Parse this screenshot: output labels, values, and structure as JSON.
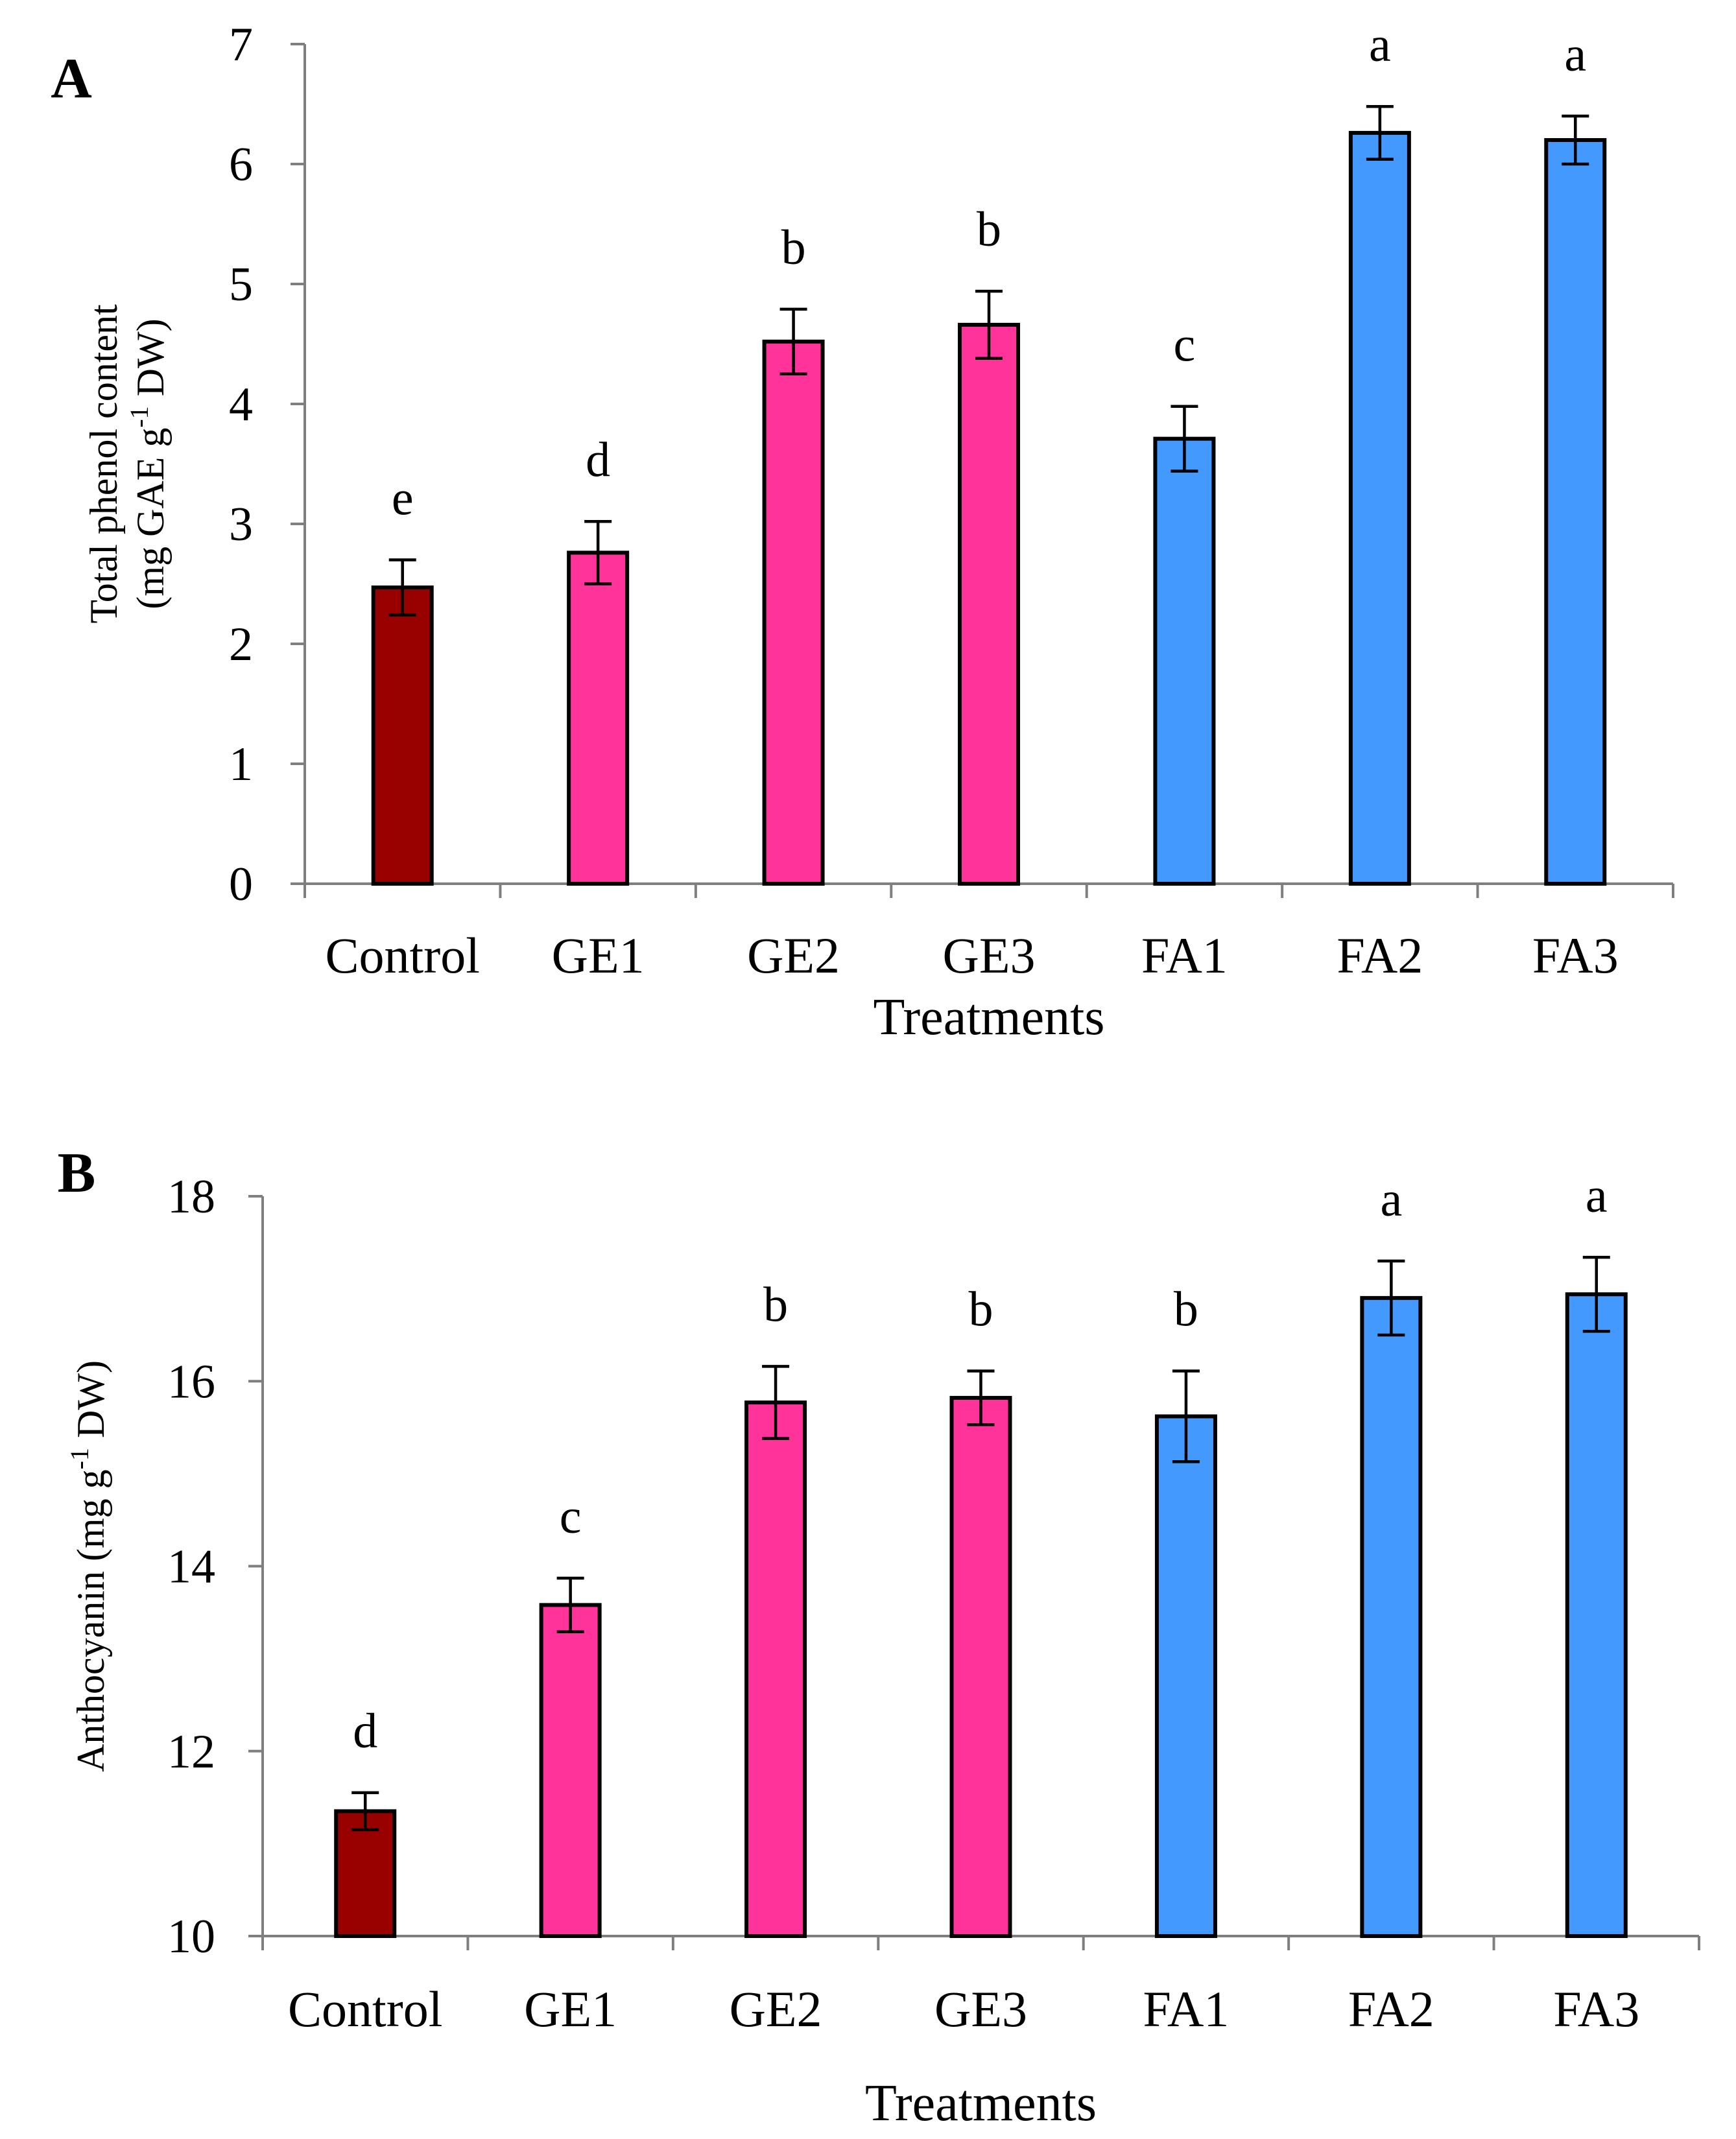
{
  "chart_data": [
    {
      "panel": "A",
      "type": "bar",
      "categories": [
        "Control",
        "GE1",
        "GE2",
        "GE3",
        "FA1",
        "FA2",
        "FA3"
      ],
      "values": [
        2.47,
        2.76,
        4.52,
        4.66,
        3.71,
        6.26,
        6.2
      ],
      "errors": [
        0.23,
        0.26,
        0.27,
        0.28,
        0.27,
        0.22,
        0.2
      ],
      "significance": [
        "e",
        "d",
        "b",
        "b",
        "c",
        "a",
        "a"
      ],
      "colors": [
        "#990000",
        "#ff3399",
        "#ff3399",
        "#ff3399",
        "#4499ff",
        "#4499ff",
        "#4499ff"
      ],
      "xlabel": "Treatments",
      "ylabel_line1": "Total phenol content",
      "ylabel_line2_pre": "(mg GAE g",
      "ylabel_line2_sup": "-1",
      "ylabel_line2_post": " DW)",
      "ylim": [
        0,
        7
      ],
      "yticks": [
        0,
        1,
        2,
        3,
        4,
        5,
        6,
        7
      ]
    },
    {
      "panel": "B",
      "type": "bar",
      "categories": [
        "Control",
        "GE1",
        "GE2",
        "GE3",
        "FA1",
        "FA2",
        "FA3"
      ],
      "values": [
        11.35,
        13.58,
        15.77,
        15.82,
        15.62,
        16.9,
        16.94
      ],
      "errors": [
        0.2,
        0.29,
        0.39,
        0.29,
        0.49,
        0.4,
        0.4
      ],
      "significance": [
        "d",
        "c",
        "b",
        "b",
        "b",
        "a",
        "a"
      ],
      "colors": [
        "#990000",
        "#ff3399",
        "#ff3399",
        "#ff3399",
        "#4499ff",
        "#4499ff",
        "#4499ff"
      ],
      "xlabel": "Treatments",
      "ylabel_pre": "Anthocyanin (mg g",
      "ylabel_sup": "-1",
      "ylabel_post": " DW)",
      "ylim": [
        10,
        18
      ],
      "yticks": [
        10,
        12,
        14,
        16,
        18
      ]
    }
  ]
}
